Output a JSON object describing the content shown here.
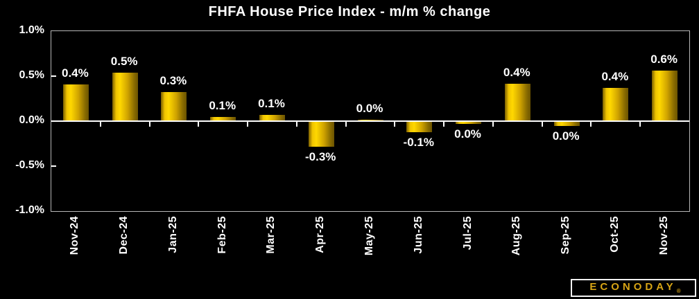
{
  "title": "FHFA House Price Index - m/m % change",
  "logo": {
    "text": "ECONODAY",
    "reg": "®"
  },
  "colors": {
    "background": "#000000",
    "bar_gold_bright": "#ffd800",
    "bar_gold_dark": "#6b5300",
    "plot_border": "#b8b8b8",
    "axis_line": "#ffffff",
    "text": "#ffffff",
    "logo_gold": "#d8a516"
  },
  "chart_data": {
    "type": "bar",
    "title": "FHFA House Price Index - m/m % change",
    "xlabel": "",
    "ylabel": "",
    "categories": [
      "Nov-24",
      "Dec-24",
      "Jan-25",
      "Feb-25",
      "Mar-25",
      "Apr-25",
      "May-25",
      "Jun-25",
      "Jul-25",
      "Aug-25",
      "Sep-25",
      "Oct-25",
      "Nov-25"
    ],
    "values": [
      0.4,
      0.5,
      0.3,
      0.1,
      0.1,
      -0.3,
      0.0,
      -0.1,
      0.0,
      0.4,
      0.0,
      0.4,
      0.6
    ],
    "data_labels": [
      "0.4%",
      "0.5%",
      "0.3%",
      "0.1%",
      "0.1%",
      "-0.3%",
      "0.0%",
      "-0.1%",
      "0.0%",
      "0.4%",
      "0.0%",
      "0.4%",
      "0.6%"
    ],
    "plot_values": [
      0.41,
      0.54,
      0.32,
      0.05,
      0.07,
      -0.28,
      0.015,
      -0.115,
      -0.025,
      0.415,
      -0.045,
      0.37,
      0.565
    ],
    "ylim": [
      -1.0,
      1.0
    ],
    "yticks": [
      1.0,
      0.5,
      0.0,
      -0.5,
      -1.0
    ],
    "ytick_labels": [
      "1.0%",
      "0.5%",
      "0.0%",
      "-0.5%",
      "-1.0%"
    ],
    "grid": false,
    "legend": null
  }
}
